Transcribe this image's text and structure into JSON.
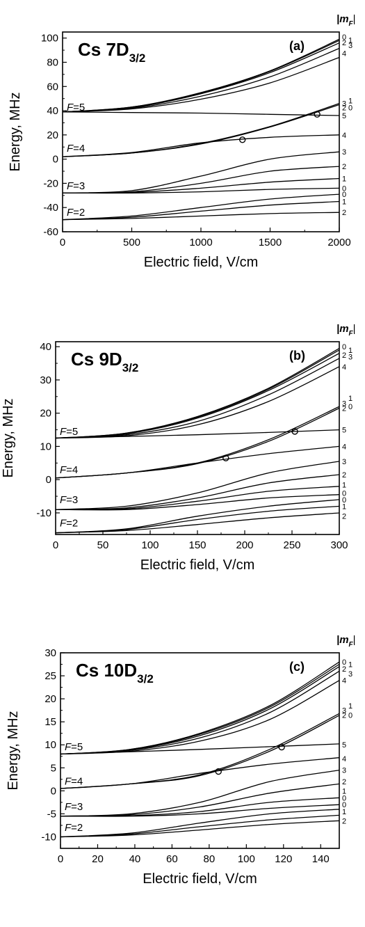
{
  "chart_data": [
    {
      "type": "line",
      "panel_letter": "(a)",
      "title_main": "Cs 7D",
      "title_sub": "3/2",
      "xlabel": "Electric field, V/cm",
      "ylabel": "Energy, MHz",
      "xlim": [
        0,
        2000
      ],
      "ylim": [
        -60,
        105
      ],
      "xticks": [
        0,
        500,
        1000,
        1500,
        2000
      ],
      "yticks": [
        -60,
        -40,
        -20,
        0,
        20,
        40,
        60,
        80,
        100
      ],
      "mf_header": "|m",
      "mf_header_sub": "F",
      "mf_header_close": "|",
      "f_labels": [
        {
          "text": "F=5",
          "y": 39
        },
        {
          "text": "F=4",
          "y": 5
        },
        {
          "text": "F=3",
          "y": -26
        },
        {
          "text": "F=2",
          "y": -48
        }
      ],
      "series": [
        {
          "x": [
            0,
            500,
            1000,
            1500,
            2000
          ],
          "values": [
            39,
            43,
            55,
            73,
            99
          ]
        },
        {
          "x": [
            0,
            500,
            1000,
            1500,
            2000
          ],
          "values": [
            39,
            43,
            54.5,
            72.5,
            98
          ]
        },
        {
          "x": [
            0,
            500,
            1000,
            1500,
            2000
          ],
          "values": [
            39,
            42.5,
            54,
            71.5,
            96
          ]
        },
        {
          "x": [
            0,
            500,
            1000,
            1500,
            2000
          ],
          "values": [
            39,
            42,
            52,
            68,
            91.5
          ]
        },
        {
          "x": [
            0,
            500,
            1000,
            1500,
            2000
          ],
          "values": [
            39,
            41.5,
            49.5,
            63,
            84
          ]
        },
        {
          "x": [
            0,
            500,
            1000,
            1500,
            2000
          ],
          "values": [
            39,
            38.5,
            38,
            37,
            36
          ]
        },
        {
          "x": [
            0,
            500,
            1000,
            1500,
            2000
          ],
          "values": [
            2,
            5,
            13,
            27,
            46
          ]
        },
        {
          "x": [
            0,
            500,
            1000,
            1500,
            2000
          ],
          "values": [
            2,
            5,
            12.5,
            26.5,
            45
          ]
        },
        {
          "x": [
            0,
            500,
            1000,
            1500,
            2000
          ],
          "values": [
            2,
            5.5,
            13.5,
            18,
            20
          ]
        },
        {
          "x": [
            0,
            500,
            1000,
            1500,
            2000
          ],
          "values": [
            -28,
            -26,
            -14,
            0,
            6
          ]
        },
        {
          "x": [
            0,
            500,
            1000,
            1500,
            2000
          ],
          "values": [
            -28,
            -27,
            -20,
            -10,
            -6
          ]
        },
        {
          "x": [
            0,
            500,
            1000,
            1500,
            2000
          ],
          "values": [
            -28,
            -27.5,
            -24,
            -19,
            -16
          ]
        },
        {
          "x": [
            0,
            500,
            1000,
            1500,
            2000
          ],
          "values": [
            -28,
            -28,
            -27,
            -25,
            -24
          ]
        },
        {
          "x": [
            0,
            500,
            1000,
            1500,
            2000
          ],
          "values": [
            -50,
            -47,
            -40,
            -33,
            -29
          ]
        },
        {
          "x": [
            0,
            500,
            1000,
            1500,
            2000
          ],
          "values": [
            -50,
            -48,
            -43,
            -38,
            -35
          ]
        },
        {
          "x": [
            0,
            500,
            1000,
            1500,
            2000
          ],
          "values": [
            -50,
            -49,
            -47,
            -45,
            -44
          ]
        }
      ],
      "crossings": [
        {
          "x": 1300,
          "y": 16
        },
        {
          "x": 1840,
          "y": 37
        }
      ],
      "mf_labels": [
        {
          "text": "0",
          "y": 101,
          "dx": 0
        },
        {
          "text": "1",
          "y": 98.5,
          "dx": 9
        },
        {
          "text": "2",
          "y": 96.5,
          "dx": 0
        },
        {
          "text": "3",
          "y": 94,
          "dx": 9
        },
        {
          "text": "4",
          "y": 87.5,
          "dx": 0
        },
        {
          "text": "3",
          "y": 46,
          "dx": 0
        },
        {
          "text": "1",
          "y": 48.5,
          "dx": 9
        },
        {
          "text": "2",
          "y": 42.5,
          "dx": 0
        },
        {
          "text": "0",
          "y": 42.5,
          "dx": 9
        },
        {
          "text": "5",
          "y": 36,
          "dx": 0
        },
        {
          "text": "4",
          "y": 20,
          "dx": 0
        },
        {
          "text": "3",
          "y": 6,
          "dx": 0
        },
        {
          "text": "2",
          "y": -6,
          "dx": 0
        },
        {
          "text": "1",
          "y": -16,
          "dx": 0
        },
        {
          "text": "0",
          "y": -24,
          "dx": 0
        },
        {
          "text": "0",
          "y": -29,
          "dx": 0
        },
        {
          "text": "1",
          "y": -35,
          "dx": 0
        },
        {
          "text": "2",
          "y": -44,
          "dx": 0
        }
      ]
    },
    {
      "type": "line",
      "panel_letter": "(b)",
      "title_main": "Cs 9D",
      "title_sub": "3/2",
      "xlabel": "Electric field, V/cm",
      "ylabel": "Energy, MHz",
      "xlim": [
        0,
        300
      ],
      "ylim": [
        -16.5,
        41.5
      ],
      "xticks": [
        0,
        50,
        100,
        150,
        200,
        250,
        300
      ],
      "yticks": [
        -10,
        0,
        10,
        20,
        30,
        40
      ],
      "mf_header": "|m",
      "mf_header_sub": "F",
      "mf_header_close": "|",
      "f_labels": [
        {
          "text": "F=5",
          "y": 13
        },
        {
          "text": "F=4",
          "y": 1.5
        },
        {
          "text": "F=3",
          "y": -7.5
        },
        {
          "text": "F=2",
          "y": -14.5
        }
      ],
      "series": [
        {
          "x": [
            0,
            75,
            150,
            225,
            300
          ],
          "values": [
            12.5,
            14,
            19,
            27.5,
            39.5
          ]
        },
        {
          "x": [
            0,
            75,
            150,
            225,
            300
          ],
          "values": [
            12.5,
            14,
            18.8,
            27.2,
            39
          ]
        },
        {
          "x": [
            0,
            75,
            150,
            225,
            300
          ],
          "values": [
            12.5,
            13.8,
            18.5,
            26.8,
            38
          ]
        },
        {
          "x": [
            0,
            75,
            150,
            225,
            300
          ],
          "values": [
            12.5,
            13.5,
            17.5,
            25.5,
            36.5
          ]
        },
        {
          "x": [
            0,
            75,
            150,
            225,
            300
          ],
          "values": [
            12.5,
            13.2,
            16.5,
            23.5,
            34
          ]
        },
        {
          "x": [
            0,
            75,
            150,
            225,
            300
          ],
          "values": [
            12.5,
            13,
            13.5,
            14.2,
            15
          ]
        },
        {
          "x": [
            0,
            75,
            150,
            225,
            300
          ],
          "values": [
            0.5,
            2,
            5,
            12,
            22
          ]
        },
        {
          "x": [
            0,
            75,
            150,
            225,
            300
          ],
          "values": [
            0.5,
            2,
            4.8,
            11.5,
            21.5
          ]
        },
        {
          "x": [
            0,
            75,
            150,
            225,
            300
          ],
          "values": [
            0.5,
            2,
            5,
            7.8,
            10
          ]
        },
        {
          "x": [
            0,
            75,
            150,
            225,
            300
          ],
          "values": [
            -9,
            -8,
            -4,
            2,
            5.5
          ]
        },
        {
          "x": [
            0,
            75,
            150,
            225,
            300
          ],
          "values": [
            -9,
            -8.5,
            -5.5,
            -1,
            1.5
          ]
        },
        {
          "x": [
            0,
            75,
            150,
            225,
            300
          ],
          "values": [
            -9,
            -8.8,
            -6.5,
            -3.5,
            -2
          ]
        },
        {
          "x": [
            0,
            75,
            150,
            225,
            300
          ],
          "values": [
            -9,
            -9,
            -7.5,
            -5.5,
            -4.5
          ]
        },
        {
          "x": [
            0,
            75,
            150,
            225,
            300
          ],
          "values": [
            -16,
            -14.8,
            -11,
            -8,
            -6
          ]
        },
        {
          "x": [
            0,
            75,
            150,
            225,
            300
          ],
          "values": [
            -16,
            -15,
            -12,
            -9.5,
            -8
          ]
        },
        {
          "x": [
            0,
            75,
            150,
            225,
            300
          ],
          "values": [
            -16,
            -15.3,
            -13.5,
            -11.5,
            -10
          ]
        }
      ],
      "crossings": [
        {
          "x": 180,
          "y": 6.5
        },
        {
          "x": 253,
          "y": 14.5
        }
      ],
      "mf_labels": [
        {
          "text": "0",
          "y": 40,
          "dx": 0
        },
        {
          "text": "1",
          "y": 39,
          "dx": 9
        },
        {
          "text": "2",
          "y": 37.5,
          "dx": 0
        },
        {
          "text": "3",
          "y": 37,
          "dx": 9
        },
        {
          "text": "4",
          "y": 34,
          "dx": 0
        },
        {
          "text": "3",
          "y": 23,
          "dx": 0
        },
        {
          "text": "1",
          "y": 24.5,
          "dx": 9
        },
        {
          "text": "2",
          "y": 21.5,
          "dx": 0
        },
        {
          "text": "0",
          "y": 22,
          "dx": 9
        },
        {
          "text": "5",
          "y": 15,
          "dx": 0
        },
        {
          "text": "4",
          "y": 10,
          "dx": 0
        },
        {
          "text": "3",
          "y": 5.5,
          "dx": 0
        },
        {
          "text": "2",
          "y": 1.5,
          "dx": 0
        },
        {
          "text": "1",
          "y": -1.5,
          "dx": 0
        },
        {
          "text": "0",
          "y": -4,
          "dx": 0
        },
        {
          "text": "0",
          "y": -6,
          "dx": 0
        },
        {
          "text": "1",
          "y": -8,
          "dx": 0
        },
        {
          "text": "2",
          "y": -11,
          "dx": 0
        }
      ]
    },
    {
      "type": "line",
      "panel_letter": "(c)",
      "title_main": "Cs 10D",
      "title_sub": "3/2",
      "xlabel": "Electric field, V/cm",
      "ylabel": "Energy, MHz",
      "xlim": [
        0,
        150
      ],
      "ylim": [
        -12.5,
        30
      ],
      "xticks": [
        0,
        20,
        40,
        60,
        80,
        100,
        120,
        140
      ],
      "yticks": [
        -10,
        -5,
        0,
        5,
        10,
        15,
        20,
        25,
        30
      ],
      "mf_header": "|m",
      "mf_header_sub": "F",
      "mf_header_close": "|",
      "f_labels": [
        {
          "text": "F=5",
          "y": 8.5
        },
        {
          "text": "F=4",
          "y": 1
        },
        {
          "text": "F=3",
          "y": -4.5
        },
        {
          "text": "F=2",
          "y": -9
        }
      ],
      "series": [
        {
          "x": [
            0,
            37.5,
            75,
            112.5,
            150
          ],
          "values": [
            8,
            9,
            12.5,
            18.5,
            28
          ]
        },
        {
          "x": [
            0,
            37.5,
            75,
            112.5,
            150
          ],
          "values": [
            8,
            9,
            12.3,
            18.2,
            27.5
          ]
        },
        {
          "x": [
            0,
            37.5,
            75,
            112.5,
            150
          ],
          "values": [
            8,
            8.9,
            12,
            17.8,
            27
          ]
        },
        {
          "x": [
            0,
            37.5,
            75,
            112.5,
            150
          ],
          "values": [
            8,
            8.8,
            11.5,
            17,
            26
          ]
        },
        {
          "x": [
            0,
            37.5,
            75,
            112.5,
            150
          ],
          "values": [
            8,
            8.6,
            10.8,
            15.5,
            24
          ]
        },
        {
          "x": [
            0,
            37.5,
            75,
            112.5,
            150
          ],
          "values": [
            8,
            8.5,
            9,
            9.6,
            10.2
          ]
        },
        {
          "x": [
            0,
            37.5,
            75,
            112.5,
            150
          ],
          "values": [
            0.5,
            1.5,
            3.5,
            9,
            16.8
          ]
        },
        {
          "x": [
            0,
            37.5,
            75,
            112.5,
            150
          ],
          "values": [
            0.5,
            1.5,
            3.3,
            8.6,
            16.4
          ]
        },
        {
          "x": [
            0,
            37.5,
            75,
            112.5,
            150
          ],
          "values": [
            0.5,
            1.5,
            3.8,
            5.8,
            7.2
          ]
        },
        {
          "x": [
            0,
            37.5,
            75,
            112.5,
            150
          ],
          "values": [
            -5.5,
            -5,
            -2.5,
            2,
            4.5
          ]
        },
        {
          "x": [
            0,
            37.5,
            75,
            112.5,
            150
          ],
          "values": [
            -5.5,
            -5.2,
            -3.5,
            -0.5,
            1.5
          ]
        },
        {
          "x": [
            0,
            37.5,
            75,
            112.5,
            150
          ],
          "values": [
            -5.5,
            -5.4,
            -4.5,
            -2.5,
            -1.5
          ]
        },
        {
          "x": [
            0,
            37.5,
            75,
            112.5,
            150
          ],
          "values": [
            -5.5,
            -5.5,
            -5,
            -3.8,
            -3
          ]
        },
        {
          "x": [
            0,
            37.5,
            75,
            112.5,
            150
          ],
          "values": [
            -10,
            -9.2,
            -7,
            -5,
            -4
          ]
        },
        {
          "x": [
            0,
            37.5,
            75,
            112.5,
            150
          ],
          "values": [
            -10,
            -9.4,
            -7.8,
            -6.3,
            -5.3
          ]
        },
        {
          "x": [
            0,
            37.5,
            75,
            112.5,
            150
          ],
          "values": [
            -10,
            -9.6,
            -8.5,
            -7.3,
            -6.5
          ]
        }
      ],
      "crossings": [
        {
          "x": 85,
          "y": 4.2
        },
        {
          "x": 119,
          "y": 9.5
        }
      ],
      "mf_labels": [
        {
          "text": "0",
          "y": 28,
          "dx": 0
        },
        {
          "text": "1",
          "y": 27.5,
          "dx": 9
        },
        {
          "text": "2",
          "y": 26.5,
          "dx": 0
        },
        {
          "text": "3",
          "y": 25.5,
          "dx": 9
        },
        {
          "text": "4",
          "y": 24,
          "dx": 0
        },
        {
          "text": "3",
          "y": 17.5,
          "dx": 0
        },
        {
          "text": "1",
          "y": 18.5,
          "dx": 9
        },
        {
          "text": "2",
          "y": 16.5,
          "dx": 0
        },
        {
          "text": "0",
          "y": 16.5,
          "dx": 9
        },
        {
          "text": "5",
          "y": 10,
          "dx": 0
        },
        {
          "text": "4",
          "y": 7,
          "dx": 0
        },
        {
          "text": "3",
          "y": 4.5,
          "dx": 0
        },
        {
          "text": "2",
          "y": 2,
          "dx": 0
        },
        {
          "text": "1",
          "y": 0,
          "dx": 0
        },
        {
          "text": "0",
          "y": -1.5,
          "dx": 0
        },
        {
          "text": "0",
          "y": -3,
          "dx": 0
        },
        {
          "text": "1",
          "y": -4.5,
          "dx": 0
        },
        {
          "text": "2",
          "y": -6.5,
          "dx": 0
        }
      ]
    }
  ]
}
